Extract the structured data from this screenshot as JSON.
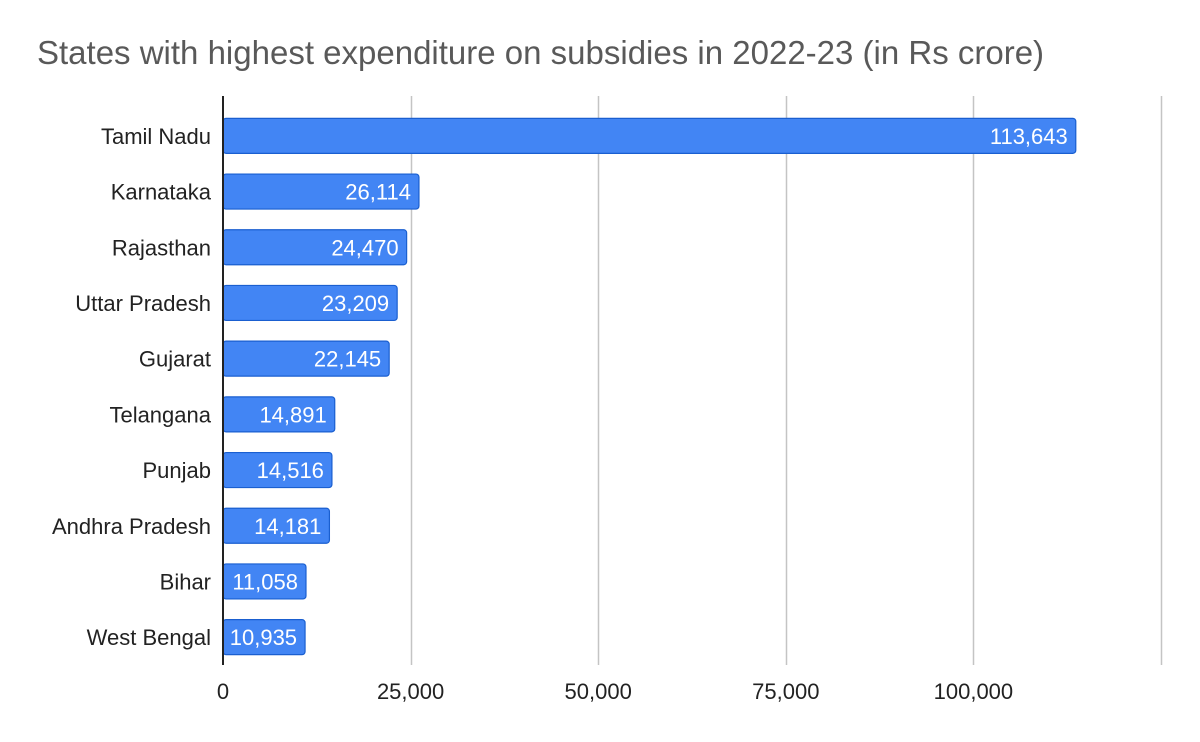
{
  "chart_data": {
    "type": "bar",
    "orientation": "horizontal",
    "title": "States with highest expenditure on subsidies in 2022-23 (in Rs crore)",
    "categories": [
      "Tamil Nadu",
      "Karnataka",
      "Rajasthan",
      "Uttar Pradesh",
      "Gujarat",
      "Telangana",
      "Punjab",
      "Andhra Pradesh",
      "Bihar",
      "West Bengal"
    ],
    "values": [
      113643,
      26114,
      24470,
      23209,
      22145,
      14891,
      14516,
      14181,
      11058,
      10935
    ],
    "data_labels": [
      "113,643",
      "26,114",
      "24,470",
      "23,209",
      "22,145",
      "14,891",
      "14,516",
      "14,181",
      "11,058",
      "10,935"
    ],
    "xlim": [
      0,
      125000
    ],
    "x_ticks": [
      0,
      25000,
      50000,
      75000,
      100000
    ],
    "x_tick_labels": [
      "0",
      "25,000",
      "50,000",
      "75,000",
      "100,000"
    ],
    "grid": true,
    "legend": "none",
    "bar_color": "#4285f4",
    "bar_border_color": "#1a5fd0"
  }
}
